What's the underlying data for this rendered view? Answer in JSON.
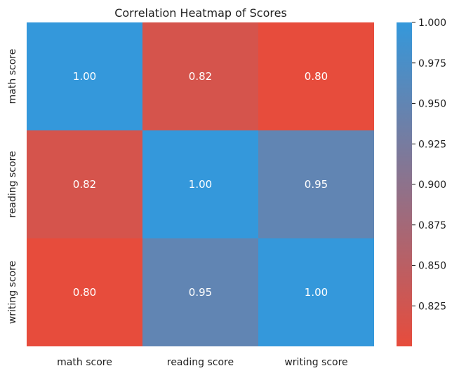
{
  "chart_data": {
    "type": "heatmap",
    "title": "Correlation Heatmap of Scores",
    "x_labels": [
      "math score",
      "reading score",
      "writing score"
    ],
    "y_labels": [
      "math score",
      "reading score",
      "writing score"
    ],
    "values": [
      [
        1.0,
        0.82,
        0.8
      ],
      [
        0.82,
        1.0,
        0.95
      ],
      [
        0.8,
        0.95,
        1.0
      ]
    ],
    "value_format": "2 decimals",
    "colorbar": {
      "min": 0.8,
      "max": 1.0,
      "ticks": [
        "1.000",
        "0.975",
        "0.950",
        "0.925",
        "0.900",
        "0.875",
        "0.850",
        "0.825"
      ],
      "low_color": "#e74c3c",
      "high_color": "#3498db"
    }
  }
}
